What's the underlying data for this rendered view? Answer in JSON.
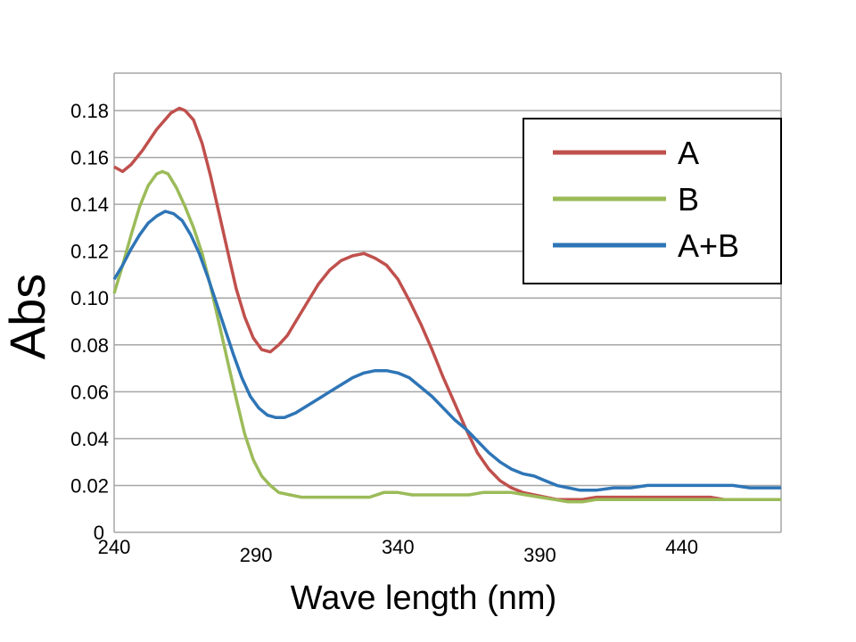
{
  "chart_data": {
    "type": "line",
    "title": "",
    "xlabel": "Wave length (nm)",
    "ylabel": "Abs",
    "xlim": [
      240,
      475
    ],
    "ylim": [
      0,
      0.196
    ],
    "grid": true,
    "legend_position": "top-right",
    "x_ticks": [
      240,
      290,
      340,
      390,
      440
    ],
    "x_tick_labels": [
      "240",
      "290",
      "340",
      "390",
      "440"
    ],
    "y_ticks": [
      0,
      0.02,
      0.04,
      0.06,
      0.08,
      0.1,
      0.12,
      0.14,
      0.16,
      0.18
    ],
    "y_tick_labels": [
      "0",
      "0.02",
      "0.04",
      "0.06",
      "0.08",
      "0.10",
      "0.12",
      "0.14",
      "0.16",
      "0.18"
    ],
    "series": [
      {
        "name": "A",
        "color": "#c0504d",
        "points": [
          [
            240,
            0.156
          ],
          [
            243,
            0.154
          ],
          [
            246,
            0.157
          ],
          [
            250,
            0.163
          ],
          [
            255,
            0.172
          ],
          [
            260,
            0.179
          ],
          [
            263,
            0.181
          ],
          [
            265,
            0.18
          ],
          [
            268,
            0.176
          ],
          [
            271,
            0.166
          ],
          [
            274,
            0.152
          ],
          [
            277,
            0.136
          ],
          [
            280,
            0.12
          ],
          [
            283,
            0.104
          ],
          [
            286,
            0.092
          ],
          [
            289,
            0.083
          ],
          [
            292,
            0.078
          ],
          [
            295,
            0.077
          ],
          [
            298,
            0.08
          ],
          [
            301,
            0.084
          ],
          [
            304,
            0.09
          ],
          [
            308,
            0.098
          ],
          [
            312,
            0.106
          ],
          [
            316,
            0.112
          ],
          [
            320,
            0.116
          ],
          [
            324,
            0.118
          ],
          [
            328,
            0.119
          ],
          [
            332,
            0.117
          ],
          [
            336,
            0.114
          ],
          [
            340,
            0.108
          ],
          [
            344,
            0.099
          ],
          [
            348,
            0.089
          ],
          [
            352,
            0.078
          ],
          [
            356,
            0.066
          ],
          [
            360,
            0.055
          ],
          [
            364,
            0.044
          ],
          [
            368,
            0.034
          ],
          [
            372,
            0.027
          ],
          [
            376,
            0.022
          ],
          [
            380,
            0.019
          ],
          [
            384,
            0.017
          ],
          [
            388,
            0.016
          ],
          [
            392,
            0.015
          ],
          [
            396,
            0.014
          ],
          [
            400,
            0.014
          ],
          [
            405,
            0.014
          ],
          [
            410,
            0.015
          ],
          [
            415,
            0.015
          ],
          [
            420,
            0.015
          ],
          [
            425,
            0.015
          ],
          [
            430,
            0.015
          ],
          [
            435,
            0.015
          ],
          [
            440,
            0.015
          ],
          [
            445,
            0.015
          ],
          [
            450,
            0.015
          ],
          [
            455,
            0.014
          ],
          [
            460,
            0.014
          ],
          [
            465,
            0.014
          ],
          [
            470,
            0.014
          ],
          [
            475,
            0.014
          ]
        ]
      },
      {
        "name": "B",
        "color": "#9bbb59",
        "points": [
          [
            240,
            0.102
          ],
          [
            243,
            0.114
          ],
          [
            246,
            0.127
          ],
          [
            249,
            0.139
          ],
          [
            252,
            0.148
          ],
          [
            255,
            0.153
          ],
          [
            257,
            0.154
          ],
          [
            259,
            0.153
          ],
          [
            262,
            0.147
          ],
          [
            265,
            0.139
          ],
          [
            268,
            0.13
          ],
          [
            271,
            0.119
          ],
          [
            274,
            0.105
          ],
          [
            277,
            0.089
          ],
          [
            280,
            0.073
          ],
          [
            283,
            0.057
          ],
          [
            286,
            0.042
          ],
          [
            289,
            0.031
          ],
          [
            292,
            0.024
          ],
          [
            295,
            0.02
          ],
          [
            298,
            0.017
          ],
          [
            302,
            0.016
          ],
          [
            306,
            0.015
          ],
          [
            310,
            0.015
          ],
          [
            315,
            0.015
          ],
          [
            320,
            0.015
          ],
          [
            325,
            0.015
          ],
          [
            330,
            0.015
          ],
          [
            335,
            0.017
          ],
          [
            340,
            0.017
          ],
          [
            345,
            0.016
          ],
          [
            350,
            0.016
          ],
          [
            355,
            0.016
          ],
          [
            360,
            0.016
          ],
          [
            365,
            0.016
          ],
          [
            370,
            0.017
          ],
          [
            375,
            0.017
          ],
          [
            380,
            0.017
          ],
          [
            385,
            0.016
          ],
          [
            390,
            0.015
          ],
          [
            395,
            0.014
          ],
          [
            400,
            0.013
          ],
          [
            405,
            0.013
          ],
          [
            410,
            0.014
          ],
          [
            415,
            0.014
          ],
          [
            420,
            0.014
          ],
          [
            425,
            0.014
          ],
          [
            430,
            0.014
          ],
          [
            435,
            0.014
          ],
          [
            440,
            0.014
          ],
          [
            445,
            0.014
          ],
          [
            450,
            0.014
          ],
          [
            455,
            0.014
          ],
          [
            460,
            0.014
          ],
          [
            465,
            0.014
          ],
          [
            470,
            0.014
          ],
          [
            475,
            0.014
          ]
        ]
      },
      {
        "name": "A+B",
        "color": "#2e75b6",
        "points": [
          [
            240,
            0.108
          ],
          [
            243,
            0.114
          ],
          [
            246,
            0.121
          ],
          [
            249,
            0.127
          ],
          [
            252,
            0.132
          ],
          [
            255,
            0.135
          ],
          [
            258,
            0.137
          ],
          [
            261,
            0.136
          ],
          [
            264,
            0.133
          ],
          [
            267,
            0.127
          ],
          [
            270,
            0.119
          ],
          [
            273,
            0.109
          ],
          [
            276,
            0.098
          ],
          [
            279,
            0.087
          ],
          [
            282,
            0.076
          ],
          [
            285,
            0.066
          ],
          [
            288,
            0.058
          ],
          [
            291,
            0.053
          ],
          [
            294,
            0.05
          ],
          [
            297,
            0.049
          ],
          [
            300,
            0.049
          ],
          [
            304,
            0.051
          ],
          [
            308,
            0.054
          ],
          [
            312,
            0.057
          ],
          [
            316,
            0.06
          ],
          [
            320,
            0.063
          ],
          [
            324,
            0.066
          ],
          [
            328,
            0.068
          ],
          [
            332,
            0.069
          ],
          [
            336,
            0.069
          ],
          [
            340,
            0.068
          ],
          [
            344,
            0.066
          ],
          [
            348,
            0.062
          ],
          [
            352,
            0.058
          ],
          [
            356,
            0.053
          ],
          [
            360,
            0.048
          ],
          [
            364,
            0.044
          ],
          [
            368,
            0.039
          ],
          [
            372,
            0.034
          ],
          [
            376,
            0.03
          ],
          [
            380,
            0.027
          ],
          [
            384,
            0.025
          ],
          [
            388,
            0.024
          ],
          [
            392,
            0.022
          ],
          [
            396,
            0.02
          ],
          [
            400,
            0.019
          ],
          [
            404,
            0.018
          ],
          [
            410,
            0.018
          ],
          [
            416,
            0.019
          ],
          [
            422,
            0.019
          ],
          [
            428,
            0.02
          ],
          [
            434,
            0.02
          ],
          [
            440,
            0.02
          ],
          [
            446,
            0.02
          ],
          [
            452,
            0.02
          ],
          [
            458,
            0.02
          ],
          [
            464,
            0.019
          ],
          [
            470,
            0.019
          ],
          [
            475,
            0.019
          ]
        ]
      }
    ]
  }
}
